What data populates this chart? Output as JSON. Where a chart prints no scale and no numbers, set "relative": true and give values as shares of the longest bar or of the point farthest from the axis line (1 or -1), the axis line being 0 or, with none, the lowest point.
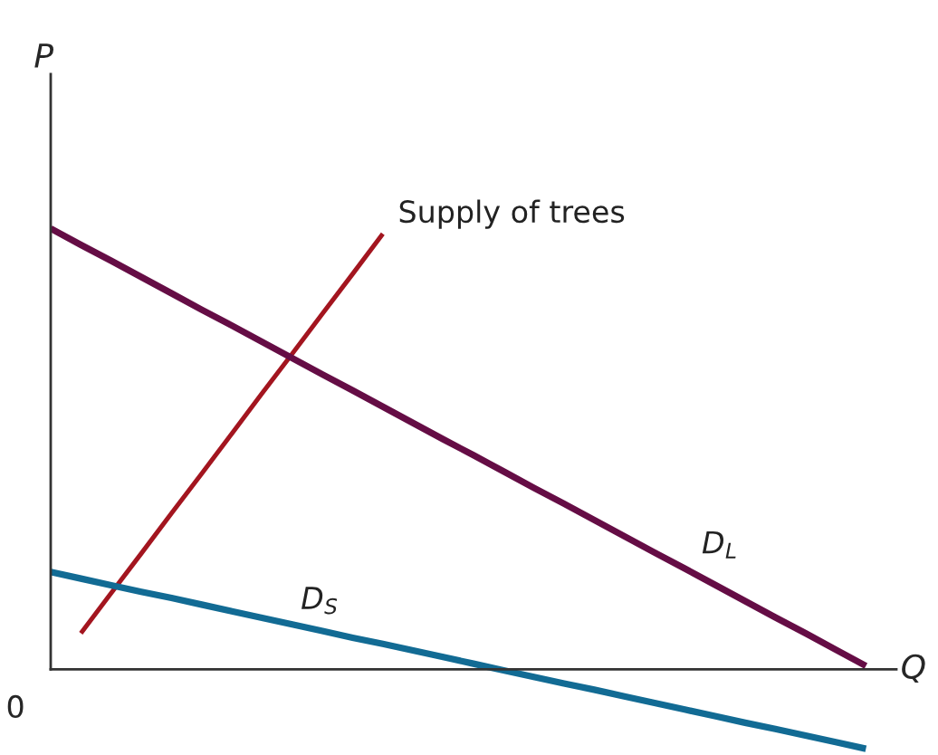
{
  "chart_data": {
    "type": "line",
    "relative": true,
    "xlabel": "Q",
    "ylabel": "P",
    "marker": "none",
    "line_style": "solid",
    "annotations": [
      "0"
    ],
    "categories": [
      null,
      null,
      null,
      null,
      null,
      null,
      null,
      null,
      null,
      null,
      null,
      null,
      null,
      null,
      null,
      null,
      null,
      null,
      null,
      null,
      null,
      null,
      null,
      null,
      null,
      null,
      null,
      null
    ],
    "series": [
      {
        "name": "Supply of trees",
        "color": "#a3151f",
        "values": [
          null,
          0.082,
          0.173,
          0.263,
          0.354,
          0.444,
          0.535,
          0.626,
          0.716,
          0.807,
          0.897,
          0.988,
          null,
          null,
          null,
          null,
          null,
          null,
          null,
          null,
          null,
          null,
          null,
          null,
          null,
          null,
          null,
          null
        ]
      },
      {
        "name": "D$_{L}$",
        "color": "#650d45",
        "values": [
          1,
          0.963,
          0.927,
          0.89,
          0.853,
          0.816,
          0.78,
          0.743,
          0.706,
          0.669,
          0.633,
          0.596,
          0.559,
          0.522,
          0.486,
          0.449,
          0.412,
          0.376,
          0.339,
          0.302,
          0.265,
          0.229,
          0.192,
          0.155,
          0.118,
          0.082,
          0.045,
          0.008
        ]
      },
      {
        "name": "D$_{S}$",
        "color": "#126b94",
        "values": [
          0.221,
          0.206,
          0.191,
          0.176,
          0.162,
          0.147,
          0.132,
          0.117,
          0.102,
          0.087,
          0.072,
          0.058,
          0.043,
          0.028,
          0.013,
          -0.002,
          -0.017,
          -0.032,
          -0.046,
          -0.061,
          -0.076,
          -0.091,
          -0.106,
          -0.121,
          -0.135,
          -0.15,
          -0.165,
          -0.18
        ]
      }
    ]
  }
}
